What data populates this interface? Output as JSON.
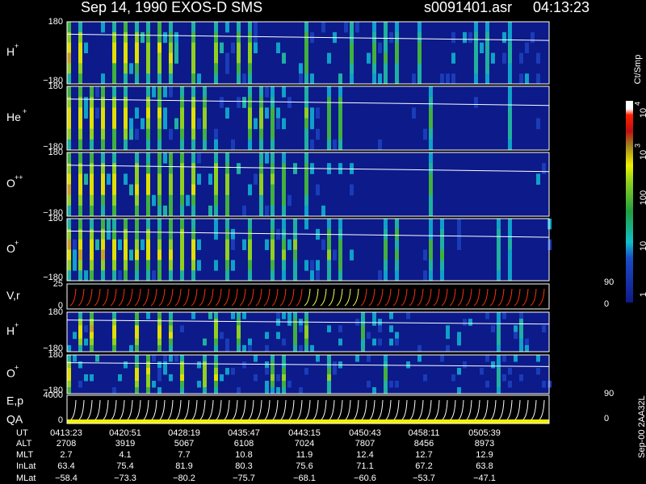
{
  "header": {
    "title": "Sep 14, 1990    EXOS-D SMS",
    "file": "s0091401.asr",
    "time": "04:13:23"
  },
  "panels": [
    {
      "label": "H",
      "sup": "+",
      "left_ticks": [
        "180",
        "−180"
      ]
    },
    {
      "label": "He",
      "sup": "+",
      "left_ticks": [
        "180",
        "−180"
      ]
    },
    {
      "label": "O",
      "sup": "++",
      "left_ticks": [
        "180",
        "−180"
      ]
    },
    {
      "label": "O",
      "sup": "+",
      "left_ticks": [
        "180",
        "−180"
      ]
    },
    {
      "label": "V,r",
      "left_ticks": [
        "25",
        "0"
      ],
      "right_ticks": [
        "90",
        "0"
      ]
    },
    {
      "label": "H",
      "sup": "+",
      "left_ticks": [
        "180",
        "−180"
      ]
    },
    {
      "label": "O",
      "sup": "+",
      "left_ticks": [
        "180",
        "−180"
      ]
    },
    {
      "label": "E,p",
      "label2": "QA",
      "left_ticks": [
        "4000",
        "0"
      ],
      "right_ticks": [
        "90",
        "0"
      ]
    }
  ],
  "colorbar": {
    "unit": "Ct/Smp",
    "labels": [
      {
        "base": "10",
        "exp": "4"
      },
      {
        "base": "10",
        "exp": "3"
      },
      {
        "base": "100"
      },
      {
        "base": "10"
      },
      {
        "base": "1"
      }
    ]
  },
  "footer": {
    "rows": [
      {
        "label": "UT",
        "values": [
          "0413:23",
          "0420:51",
          "0428:19",
          "0435:47",
          "0443:15",
          "0450:43",
          "0458:11",
          "0505:39"
        ]
      },
      {
        "label": "ALT",
        "values": [
          "2708",
          "3919",
          "5067",
          "6108",
          "7024",
          "7807",
          "8456",
          "8973"
        ]
      },
      {
        "label": "MLT",
        "values": [
          "2.7",
          "4.1",
          "7.7",
          "10.8",
          "11.9",
          "12.4",
          "12.7",
          "12.9"
        ]
      },
      {
        "label": "InLat",
        "values": [
          "63.4",
          "75.4",
          "81.9",
          "80.3",
          "75.6",
          "71.1",
          "67.2",
          "63.8"
        ]
      },
      {
        "label": "MLat",
        "values": [
          "−58.4",
          "−73.3",
          "−80.2",
          "−75.7",
          "−68.1",
          "−60.6",
          "−53.7",
          "−47.1"
        ]
      }
    ]
  },
  "side_note": "Sep-00  2AA32L"
}
